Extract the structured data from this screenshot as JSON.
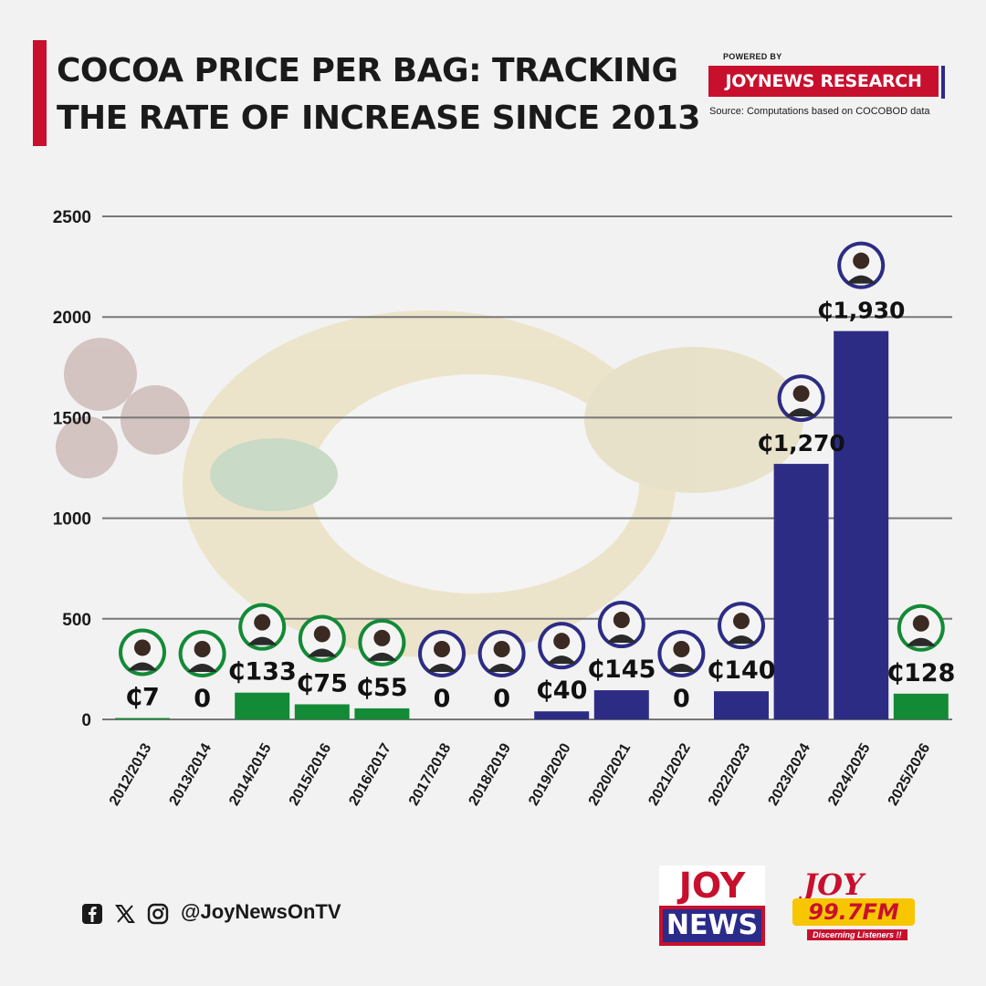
{
  "header": {
    "title_line1": "COCOA PRICE PER BAG: TRACKING",
    "title_line2": "THE RATE OF INCREASE SINCE 2013",
    "powered_by": "POWERED BY",
    "research_label": "JOYNEWS RESEARCH",
    "source": "Source: Computations based on COCOBOD data"
  },
  "colors": {
    "green": "#138a36",
    "navy": "#2d2c85",
    "red": "#c8102e",
    "gridline": "#777777"
  },
  "chart_data": {
    "type": "bar",
    "title": "COCOA PRICE PER BAG: TRACKING THE RATE OF INCREASE SINCE 2013",
    "xlabel": "",
    "ylabel": "",
    "ylim": [
      0,
      2500
    ],
    "yticks": [
      "0",
      "500",
      "1000",
      "1500",
      "2000",
      "2500"
    ],
    "grid": true,
    "categories": [
      "2012/2013",
      "2013/2014",
      "2014/2015",
      "2015/2016",
      "2016/2017",
      "2017/2018",
      "2018/2019",
      "2019/2020",
      "2020/2021",
      "2021/2022",
      "2022/2023",
      "2023/2024",
      "2024/2025",
      "2025/2026"
    ],
    "values": [
      7,
      0,
      133,
      75,
      55,
      0,
      0,
      40,
      145,
      0,
      140,
      1270,
      1930,
      128
    ],
    "data_labels": [
      "₵7",
      "0",
      "₵133",
      "₵75",
      "₵55",
      "0",
      "0",
      "₵40",
      "₵145",
      "0",
      "₵140",
      "₵1,270",
      "₵1,930",
      "₵128"
    ],
    "bar_colors": [
      "green",
      "green",
      "green",
      "green",
      "green",
      "navy",
      "navy",
      "navy",
      "navy",
      "navy",
      "navy",
      "navy",
      "navy",
      "green"
    ]
  },
  "footer": {
    "social_icons": [
      "facebook-icon",
      "x-icon",
      "instagram-icon"
    ],
    "handle": "@JoyNewsOnTV",
    "logo1_top": "JOY",
    "logo1_bottom": "NEWS",
    "logo2_top": "JOY",
    "logo2_freq": "99.7FM",
    "logo2_tagline": "Discerning Listeners !!"
  }
}
